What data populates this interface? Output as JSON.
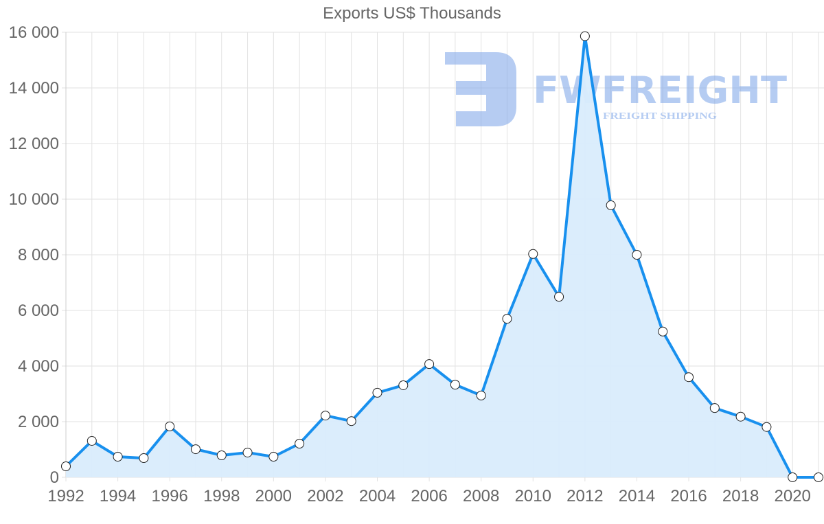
{
  "chart_data": {
    "type": "area",
    "title": "Exports US$ Thousands",
    "xlabel": "",
    "ylabel": "",
    "x": [
      1992,
      1993,
      1994,
      1995,
      1996,
      1997,
      1998,
      1999,
      2000,
      2001,
      2002,
      2003,
      2004,
      2005,
      2006,
      2007,
      2008,
      2009,
      2010,
      2011,
      2012,
      2013,
      2014,
      2015,
      2016,
      2017,
      2018,
      2019,
      2020,
      2021
    ],
    "series": [
      {
        "name": "Exports US$ Thousands",
        "values": [
          395,
          1310,
          740,
          690,
          1830,
          1010,
          790,
          890,
          740,
          1210,
          2220,
          2020,
          3040,
          3310,
          4070,
          3330,
          2940,
          5700,
          8030,
          6490,
          15860,
          9780,
          8000,
          5240,
          3600,
          2490,
          2180,
          1810,
          0,
          0
        ]
      }
    ],
    "xticks": [
      "1992",
      "1994",
      "1996",
      "1998",
      "2000",
      "2002",
      "2004",
      "2006",
      "2008",
      "2010",
      "2012",
      "2014",
      "2016",
      "2018",
      "2020"
    ],
    "yticks": [
      "0",
      "2 000",
      "4 000",
      "6 000",
      "8 000",
      "10 000",
      "12 000",
      "14 000",
      "16 000"
    ],
    "ylim": [
      0,
      16000
    ],
    "xlim": [
      1992,
      2021
    ],
    "grid": true,
    "legend": "none"
  },
  "colors": {
    "line": "#1890ee",
    "fill": "#d9ecfc",
    "grid": "#e2e2e2",
    "axis_text": "#666666",
    "marker_fill": "#ffffff",
    "marker_stroke": "#222222",
    "watermark": "#7aa3e8"
  },
  "watermark": {
    "brand": "FWFREIGHT",
    "tagline": "FREIGHT SHIPPING"
  }
}
